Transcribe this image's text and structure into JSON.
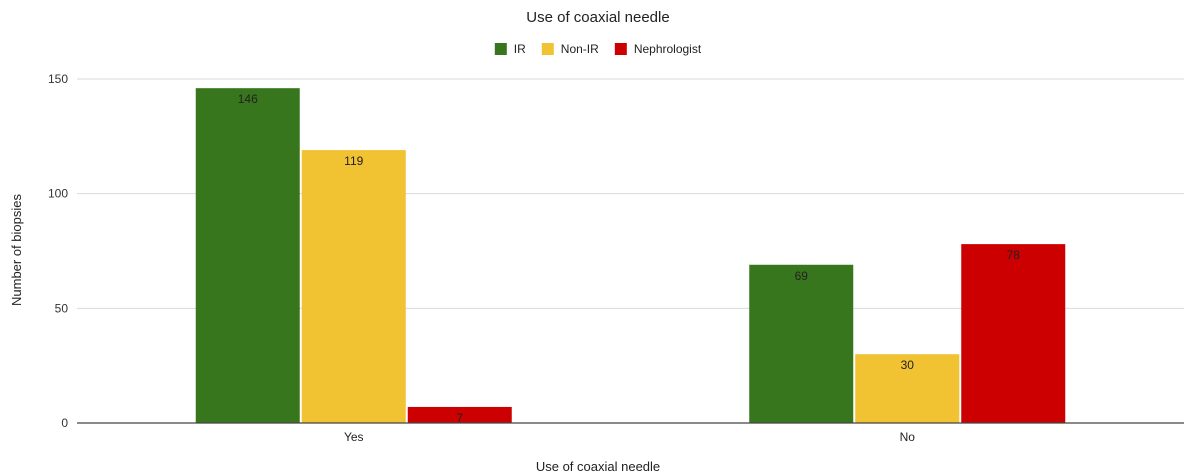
{
  "chart_data": {
    "type": "bar",
    "title": "Use of coaxial needle",
    "xlabel": "Use of coaxial needle",
    "ylabel": "Number of biopsies",
    "categories": [
      "Yes",
      "No"
    ],
    "series": [
      {
        "name": "IR",
        "color": "#38761d",
        "values": [
          146,
          69
        ]
      },
      {
        "name": "Non-IR",
        "color": "#f1c232",
        "values": [
          119,
          30
        ]
      },
      {
        "name": "Nephrologist",
        "color": "#cc0000",
        "values": [
          7,
          78
        ]
      }
    ],
    "ylim": [
      0,
      150
    ],
    "yticks": [
      0,
      50,
      100,
      150
    ],
    "grid": true,
    "legend_position": "top"
  }
}
